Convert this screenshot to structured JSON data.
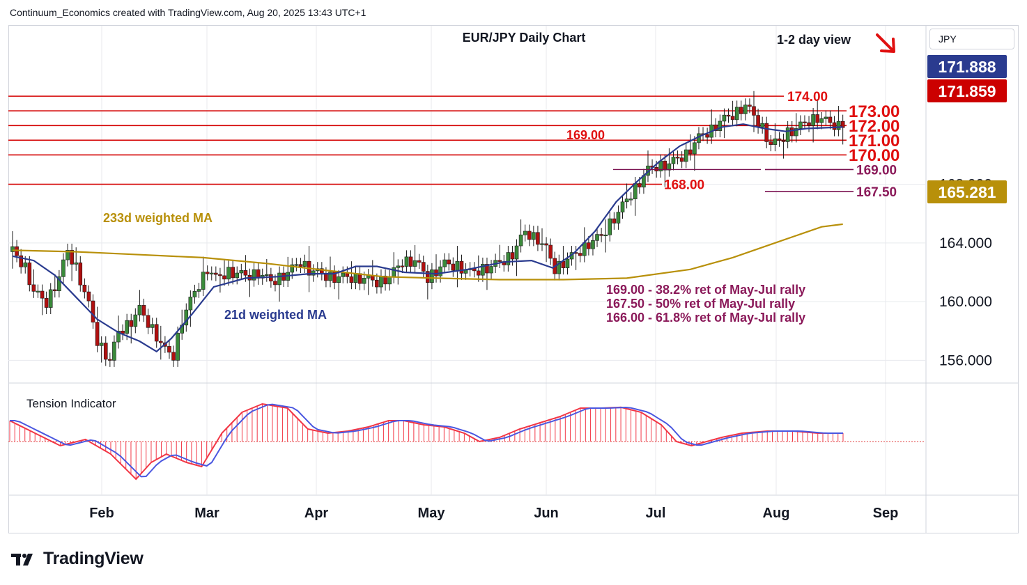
{
  "header": {
    "attribution": "Continuum_Economics created with TradingView.com, Aug 20, 2025 13:43 UTC+1"
  },
  "toolbar": {
    "currency": "JPY"
  },
  "brand": {
    "name": "TradingView"
  },
  "chart_data": {
    "type": "candlestick",
    "title": "EUR/JPY Daily Chart",
    "view_note": "1-2 day view",
    "x_labels": [
      "Feb",
      "Mar",
      "Apr",
      "May",
      "Jun",
      "Jul",
      "Aug",
      "Sep"
    ],
    "y_ticks": [
      "156.000",
      "160.000",
      "164.000",
      "168.000"
    ],
    "y_tick_values": [
      156,
      160,
      164,
      168
    ],
    "ylim": [
      154.5,
      178.8
    ],
    "price_tags": [
      {
        "text": "171.888",
        "value": 171.888,
        "color": "#2a3b8f"
      },
      {
        "text": "171.859",
        "value": 171.859,
        "color": "#cc0000"
      },
      {
        "text": "165.281",
        "value": 165.281,
        "color": "#b8900a"
      }
    ],
    "resistance_levels": [
      {
        "label": "174.00",
        "value": 174.0
      },
      {
        "label": "173.00",
        "value": 173.0
      },
      {
        "label": "172.00",
        "value": 172.0
      },
      {
        "label": "171.00",
        "value": 171.0
      },
      {
        "label": "170.00",
        "value": 170.0
      },
      {
        "label": "168.00",
        "value": 168.0
      }
    ],
    "support_levels": [
      {
        "label": "169.00",
        "value": 169.0
      },
      {
        "label": "167.50",
        "value": 167.5
      }
    ],
    "left_label_169": "169.00",
    "series": [
      {
        "name": "233d weighted MA",
        "color": "#b8900a"
      },
      {
        "name": "21d weighted MA",
        "color": "#2a3b8f"
      }
    ],
    "annotations": [
      "169.00 - 38.2% ret of May-Jul rally",
      "167.50 - 50% ret of May-Jul rally",
      "166.00 - 61.8% ret of May-Jul rally"
    ],
    "ma233": [
      [
        0,
        163.5
      ],
      [
        30,
        163.4
      ],
      [
        60,
        163.2
      ],
      [
        90,
        163.0
      ],
      [
        120,
        162.6
      ],
      [
        150,
        162.1
      ],
      [
        175,
        161.7
      ],
      [
        200,
        161.6
      ],
      [
        230,
        161.5
      ],
      [
        260,
        161.5
      ],
      [
        290,
        161.6
      ],
      [
        320,
        162.2
      ],
      [
        340,
        163.0
      ],
      [
        360,
        164.0
      ],
      [
        372,
        164.6
      ],
      [
        382,
        165.1
      ],
      [
        392,
        165.28
      ]
    ],
    "ma21": [
      [
        0,
        163.1
      ],
      [
        10,
        162.8
      ],
      [
        20,
        161.8
      ],
      [
        30,
        160.3
      ],
      [
        40,
        158.8
      ],
      [
        50,
        157.9
      ],
      [
        60,
        157.3
      ],
      [
        68,
        156.6
      ],
      [
        75,
        157.5
      ],
      [
        85,
        159.2
      ],
      [
        95,
        161.0
      ],
      [
        110,
        161.6
      ],
      [
        125,
        161.7
      ],
      [
        140,
        161.9
      ],
      [
        152,
        161.9
      ],
      [
        162,
        162.4
      ],
      [
        172,
        162.4
      ],
      [
        185,
        162.0
      ],
      [
        200,
        161.9
      ],
      [
        215,
        162.2
      ],
      [
        232,
        162.7
      ],
      [
        245,
        162.8
      ],
      [
        255,
        162.3
      ],
      [
        265,
        163.3
      ],
      [
        275,
        164.8
      ],
      [
        285,
        166.8
      ],
      [
        295,
        168.2
      ],
      [
        305,
        169.5
      ],
      [
        315,
        170.6
      ],
      [
        325,
        171.3
      ],
      [
        335,
        171.9
      ],
      [
        345,
        172.1
      ],
      [
        355,
        171.8
      ],
      [
        365,
        171.6
      ],
      [
        375,
        171.8
      ],
      [
        392,
        171.9
      ]
    ],
    "candles": [
      [
        0,
        163.4
      ],
      [
        6,
        162.3
      ],
      [
        10,
        160.6
      ],
      [
        16,
        159.9
      ],
      [
        22,
        161.6
      ],
      [
        26,
        163.4
      ],
      [
        30,
        162.3
      ],
      [
        36,
        159.7
      ],
      [
        40,
        157.3
      ],
      [
        46,
        155.9
      ],
      [
        50,
        157.9
      ],
      [
        56,
        158.6
      ],
      [
        60,
        159.4
      ],
      [
        66,
        158.1
      ],
      [
        72,
        156.6
      ],
      [
        76,
        156.3
      ],
      [
        80,
        158.7
      ],
      [
        86,
        160.6
      ],
      [
        92,
        162.2
      ],
      [
        96,
        161.5
      ],
      [
        102,
        162.0
      ],
      [
        110,
        161.7
      ],
      [
        116,
        161.9
      ],
      [
        122,
        161.3
      ],
      [
        130,
        161.9
      ],
      [
        136,
        162.7
      ],
      [
        140,
        162.1
      ],
      [
        146,
        161.8
      ],
      [
        152,
        161.6
      ],
      [
        160,
        161.6
      ],
      [
        166,
        161.5
      ],
      [
        172,
        161.3
      ],
      [
        178,
        161.6
      ],
      [
        184,
        162.7
      ],
      [
        190,
        162.7
      ],
      [
        196,
        161.6
      ],
      [
        204,
        162.5
      ],
      [
        210,
        162.4
      ],
      [
        216,
        161.9
      ],
      [
        222,
        162.2
      ],
      [
        226,
        162.3
      ],
      [
        232,
        162.8
      ],
      [
        236,
        163.2
      ],
      [
        242,
        164.7
      ],
      [
        248,
        164.2
      ],
      [
        252,
        163.5
      ],
      [
        256,
        162.2
      ],
      [
        262,
        162.8
      ],
      [
        266,
        163.2
      ],
      [
        272,
        163.9
      ],
      [
        278,
        164.4
      ],
      [
        282,
        165.3
      ],
      [
        286,
        166.0
      ],
      [
        290,
        166.9
      ],
      [
        294,
        167.7
      ],
      [
        300,
        168.9
      ],
      [
        304,
        169.2
      ],
      [
        310,
        169.3
      ],
      [
        314,
        169.7
      ],
      [
        318,
        170.0
      ],
      [
        324,
        171.1
      ],
      [
        330,
        171.7
      ],
      [
        334,
        172.2
      ],
      [
        340,
        172.7
      ],
      [
        346,
        173.3
      ],
      [
        350,
        172.6
      ],
      [
        354,
        171.8
      ],
      [
        358,
        170.6
      ],
      [
        362,
        170.9
      ],
      [
        366,
        171.5
      ],
      [
        370,
        171.7
      ],
      [
        376,
        172.3
      ],
      [
        380,
        172.5
      ],
      [
        386,
        172.1
      ],
      [
        392,
        171.86
      ]
    ],
    "tension_indicator": {
      "title": "Tension Indicator",
      "values": [
        [
          0,
          0.5
        ],
        [
          10,
          0.2
        ],
        [
          20,
          -0.1
        ],
        [
          30,
          0.05
        ],
        [
          40,
          -0.3
        ],
        [
          50,
          -0.9
        ],
        [
          56,
          -0.5
        ],
        [
          62,
          -0.3
        ],
        [
          70,
          -0.5
        ],
        [
          76,
          -0.6
        ],
        [
          84,
          0.2
        ],
        [
          92,
          0.7
        ],
        [
          100,
          0.9
        ],
        [
          110,
          0.8
        ],
        [
          118,
          0.3
        ],
        [
          126,
          0.2
        ],
        [
          134,
          0.25
        ],
        [
          142,
          0.35
        ],
        [
          150,
          0.5
        ],
        [
          156,
          0.5
        ],
        [
          164,
          0.4
        ],
        [
          172,
          0.35
        ],
        [
          180,
          0.2
        ],
        [
          186,
          0.0
        ],
        [
          194,
          0.1
        ],
        [
          202,
          0.3
        ],
        [
          210,
          0.45
        ],
        [
          218,
          0.6
        ],
        [
          226,
          0.8
        ],
        [
          234,
          0.8
        ],
        [
          242,
          0.82
        ],
        [
          250,
          0.7
        ],
        [
          258,
          0.4
        ],
        [
          264,
          0.0
        ],
        [
          270,
          -0.1
        ],
        [
          276,
          0.0
        ],
        [
          282,
          0.1
        ],
        [
          290,
          0.2
        ],
        [
          300,
          0.25
        ],
        [
          310,
          0.25
        ],
        [
          320,
          0.2
        ],
        [
          330,
          0.2
        ]
      ]
    }
  }
}
